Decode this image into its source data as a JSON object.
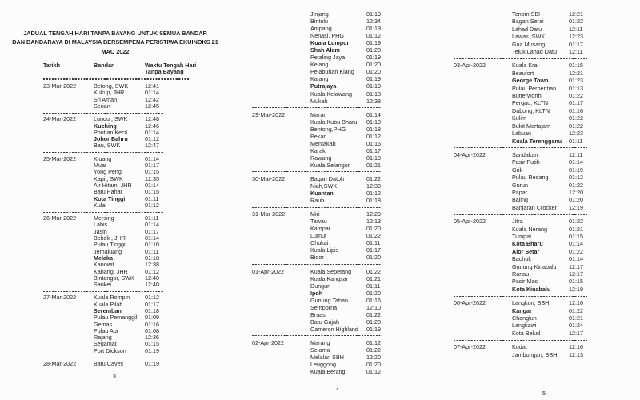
{
  "document": {
    "title_line1": "JADUAL TENGAH HARI TANPA BAYANG UNTUK SEMUA BANDAR",
    "title_line2": "DAN BANDARAYA DI MALAYSIA BERSEMPENA PERISTIWA EKUINOKS 21",
    "title_line3": "MAC 2022",
    "headers": {
      "date": "Tarikh",
      "city": "Bandar",
      "time_line1": "Waktu Tengah Hari",
      "time_line2": "Tanpa Bayang"
    },
    "text_color": "#1f1f1f",
    "background_color": "#fcfcfc"
  },
  "pages": [
    {
      "number": "3",
      "groups": [
        {
          "date": "23-Mar-2022",
          "rows": [
            {
              "city": "Betong, SWK",
              "time": "12:41"
            },
            {
              "city": "Kukup, JHR",
              "time": "01:14"
            },
            {
              "city": "Sri Aman",
              "time": "12:42"
            },
            {
              "city": "Serian",
              "time": "12:45"
            }
          ]
        },
        {
          "date": "24-Mar-2022",
          "rows": [
            {
              "city": "Lundu , SWK",
              "time": "12:48"
            },
            {
              "city": "Kuching",
              "time": "12:46",
              "bold": true
            },
            {
              "city": "Pontian Kecil",
              "time": "01:14"
            },
            {
              "city": "Johor Bahru",
              "time": "01:12",
              "bold": true
            },
            {
              "city": "Bau, SWK",
              "time": "12:47"
            }
          ]
        },
        {
          "date": "25-Mar-2022",
          "rows": [
            {
              "city": "Kluang",
              "time": "01:14"
            },
            {
              "city": "Muar",
              "time": "01:17"
            },
            {
              "city": "Yong Peng",
              "time": "01:15"
            },
            {
              "city": "Kapit, SWK",
              "time": "12:35"
            },
            {
              "city": "Air Hitam, JHR",
              "time": "01:14"
            },
            {
              "city": "Batu Pahat",
              "time": "01:15"
            },
            {
              "city": "Kota Tinggi",
              "time": "01:11",
              "bold": true
            },
            {
              "city": "Kulai",
              "time": "01:12"
            }
          ]
        },
        {
          "date": "26-Mar-2022",
          "rows": [
            {
              "city": "Mersing",
              "time": "01:11"
            },
            {
              "city": "Labis",
              "time": "01:14"
            },
            {
              "city": "Jasin",
              "time": "01:17"
            },
            {
              "city": "Bekok , JHR",
              "time": "01:14"
            },
            {
              "city": "Pulau Tinggi",
              "time": "01:10"
            },
            {
              "city": "Jemaluang",
              "time": "01:11"
            },
            {
              "city": "Melaka",
              "time": "01:18",
              "bold": true
            },
            {
              "city": "Kanowit",
              "time": "12:38"
            },
            {
              "city": "Kahang, JHR",
              "time": "01:12"
            },
            {
              "city": "Bintangor, SWK",
              "time": "12:40"
            },
            {
              "city": "Sarikei",
              "time": "12:40"
            }
          ]
        },
        {
          "date": "27-Mar-2022",
          "rows": [
            {
              "city": "Kuala Rompin",
              "time": "01:12"
            },
            {
              "city": "Kuala Pilah",
              "time": "01:17"
            },
            {
              "city": "Seremban",
              "time": "01:18",
              "bold": true
            },
            {
              "city": "Pulau Pemanggil",
              "time": "01:09"
            },
            {
              "city": "Gemas",
              "time": "01:16"
            },
            {
              "city": "Pulau Aur",
              "time": "01:08"
            },
            {
              "city": "Rajang",
              "time": "12:36"
            },
            {
              "city": "Segamat",
              "time": "01:15"
            },
            {
              "city": "Port Dickson",
              "time": "01:19"
            }
          ]
        },
        {
          "date": "28-Mar-2022",
          "rows": [
            {
              "city": "Batu Caves",
              "time": "01:19"
            }
          ]
        }
      ]
    },
    {
      "number": "4",
      "groups": [
        {
          "date": "",
          "rows": [
            {
              "city": "Jinjang",
              "time": "01:19"
            },
            {
              "city": "Bintulu",
              "time": "12:34"
            },
            {
              "city": "Ampang",
              "time": "01:19"
            },
            {
              "city": "Nenasi, PHG",
              "time": "01:12"
            },
            {
              "city": "Kuala Lumpur",
              "time": "01:19",
              "bold": true
            },
            {
              "city": "Shah Alam",
              "time": "01:20",
              "bold": true
            },
            {
              "city": "Petaling Jaya",
              "time": "01:19"
            },
            {
              "city": "Kelang",
              "time": "01:20"
            },
            {
              "city": "Pelabuhan Klang",
              "time": "01:20"
            },
            {
              "city": "Kajang",
              "time": "01:19"
            },
            {
              "city": "Putrajaya",
              "time": "01:19",
              "bold": true
            },
            {
              "city": "Kuala Kelawang",
              "time": "01:18"
            },
            {
              "city": "Mukah",
              "time": "12:38"
            }
          ]
        },
        {
          "date": "29-Mar-2022",
          "rows": [
            {
              "city": "Maran",
              "time": "01:14"
            },
            {
              "city": "Kuala Kubu Bharu",
              "time": "01:19"
            },
            {
              "city": "Bentong,PHG",
              "time": "01:18"
            },
            {
              "city": "Pekan",
              "time": "01:12"
            },
            {
              "city": "Mentakab",
              "time": "01:16"
            },
            {
              "city": "Karak",
              "time": "01:17"
            },
            {
              "city": "Rawang",
              "time": "01:19"
            },
            {
              "city": "Kuala Selangor",
              "time": "01:21"
            }
          ]
        },
        {
          "date": "30-Mar-2022",
          "rows": [
            {
              "city": "Bagan Datoh",
              "time": "01:22"
            },
            {
              "city": "Niah,SWK",
              "time": "12:30"
            },
            {
              "city": "Kuantan",
              "time": "01:12",
              "bold": true
            },
            {
              "city": "Raub",
              "time": "01:18"
            }
          ]
        },
        {
          "date": "31-Mar-2022",
          "rows": [
            {
              "city": "Miri",
              "time": "12:29"
            },
            {
              "city": "Tawau",
              "time": "12:13"
            },
            {
              "city": "Kampar",
              "time": "01:20"
            },
            {
              "city": "Lumut",
              "time": "01:22"
            },
            {
              "city": "Chukai",
              "time": "01:11"
            },
            {
              "city": "Kuala Lipis",
              "time": "01:17"
            },
            {
              "city": "Bidor",
              "time": "01:20"
            }
          ]
        },
        {
          "date": "01-Apr-2022",
          "rows": [
            {
              "city": "Kuala Sepetang",
              "time": "01:22"
            },
            {
              "city": "Kuala Kangsar",
              "time": "01:21"
            },
            {
              "city": "Dungun",
              "time": "01:11"
            },
            {
              "city": "Ipoh",
              "time": "01:20",
              "bold": true
            },
            {
              "city": "Gunung Tahan",
              "time": "01:16"
            },
            {
              "city": "Semporna",
              "time": "12:10"
            },
            {
              "city": "Bruas",
              "time": "01:22"
            },
            {
              "city": "Batu Gajah",
              "time": "01:20"
            },
            {
              "city": "Cameron Highland",
              "time": "01:19"
            }
          ]
        },
        {
          "date": "02-Apr-2022",
          "rows": [
            {
              "city": "Marang",
              "time": "01:12"
            },
            {
              "city": "Selama",
              "time": "01:22"
            },
            {
              "city": "Melalar, SBH",
              "time": "12:20"
            },
            {
              "city": "Lenggong",
              "time": "01:20"
            },
            {
              "city": "Kuala Berang",
              "time": "01:12"
            }
          ]
        }
      ]
    },
    {
      "number": "5",
      "groups": [
        {
          "date": "",
          "rows": [
            {
              "city": "Tenom,SBH",
              "time": "12:21"
            },
            {
              "city": "Bagan Serai",
              "time": "01:22"
            },
            {
              "city": "Lahad Datu",
              "time": "12:11"
            },
            {
              "city": "Lawas ,SWK",
              "time": "12:23"
            },
            {
              "city": "Gua Musang",
              "time": "01:17"
            },
            {
              "city": "Teluk Lahad Datu",
              "time": "12:11"
            }
          ]
        },
        {
          "date": "03-Apr-2022",
          "rows": [
            {
              "city": "Kuala Krai",
              "time": "01:15"
            },
            {
              "city": "Beaufort",
              "time": "12:21"
            },
            {
              "city": "George Town",
              "time": "01:23",
              "bold": true
            },
            {
              "city": "Pulau Perhentian",
              "time": "01:13"
            },
            {
              "city": "Butterworth",
              "time": "01:22"
            },
            {
              "city": "Pergau, KLTN",
              "time": "01:17"
            },
            {
              "city": "Dabong, KLTN",
              "time": "01:16"
            },
            {
              "city": "Kulim",
              "time": "01:22"
            },
            {
              "city": "Bukit Mertajam",
              "time": "01:22"
            },
            {
              "city": "Labuan",
              "time": "12:23"
            },
            {
              "city": "Kuala Terengganu",
              "time": "01:11",
              "bold": true
            }
          ]
        },
        {
          "date": "04-Apr-2022",
          "rows": [
            {
              "city": "Sandakan",
              "time": "12:11"
            },
            {
              "city": "Pasir Putih",
              "time": "01:14"
            },
            {
              "city": "Grik",
              "time": "01:19"
            },
            {
              "city": "Pulau Redang",
              "time": "01:12"
            },
            {
              "city": "Gurun",
              "time": "01:22"
            },
            {
              "city": "Papar",
              "time": "12:20"
            },
            {
              "city": "Baling",
              "time": "01:20"
            },
            {
              "city": "Banjaran Crocker",
              "time": "12:19"
            }
          ]
        },
        {
          "date": "05-Apr-2022",
          "rows": [
            {
              "city": "Jitra",
              "time": "01:22"
            },
            {
              "city": "Kuala Nerang",
              "time": "01:21"
            },
            {
              "city": "Tumpat",
              "time": "01:15"
            },
            {
              "city": "Kota Bharu",
              "time": "01:14",
              "bold": true
            },
            {
              "city": "Alor Setar",
              "time": "01:22",
              "bold": true
            },
            {
              "city": "Bachok",
              "time": "01:14"
            },
            {
              "city": "Gunung Kinabalu",
              "time": "12:17"
            },
            {
              "city": "Ranau",
              "time": "12:17"
            },
            {
              "city": "Pasir Mas",
              "time": "01:15"
            },
            {
              "city": "Kota Kinabalu",
              "time": "12:19",
              "bold": true
            }
          ]
        },
        {
          "date": "06-Apr-2022",
          "rows": [
            {
              "city": "Langkon, SBH",
              "time": "12:16"
            },
            {
              "city": "Kangar",
              "time": "01:22",
              "bold": true
            },
            {
              "city": "Changlun",
              "time": "01:21"
            },
            {
              "city": "Langkawi",
              "time": "01:24"
            },
            {
              "city": "Kota Belud",
              "time": "12:17"
            }
          ]
        },
        {
          "date": "07-Apr-2022",
          "rows": [
            {
              "city": "Kudat",
              "time": "12:16"
            },
            {
              "city": "Jambongan, SBH",
              "time": "12:13"
            }
          ]
        }
      ]
    }
  ]
}
